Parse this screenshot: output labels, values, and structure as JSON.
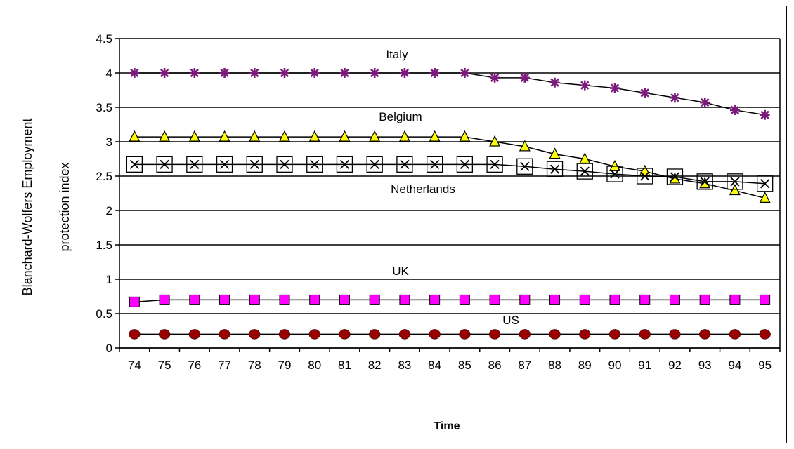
{
  "chart_data": {
    "type": "line",
    "title": "",
    "xlabel": "Time",
    "ylabel_lines": [
      "Blanchard-Wolfers Employment",
      "protection index"
    ],
    "x": [
      "74",
      "75",
      "76",
      "77",
      "78",
      "79",
      "80",
      "81",
      "82",
      "83",
      "84",
      "85",
      "86",
      "87",
      "88",
      "89",
      "90",
      "91",
      "92",
      "93",
      "94",
      "95"
    ],
    "ylim": [
      0,
      4.5
    ],
    "yticks": [
      "0",
      "0.5",
      "1",
      "1.5",
      "2",
      "2.5",
      "3",
      "3.5",
      "4",
      "4.5"
    ],
    "grid": "horizontal",
    "legend": "inline-labels",
    "series": [
      {
        "name": "Italy",
        "marker": "asterisk",
        "color": "#7a1a7a",
        "values": [
          4,
          4,
          4,
          4,
          4,
          4,
          4,
          4,
          4,
          4,
          4,
          4,
          3.93,
          3.93,
          3.86,
          3.82,
          3.78,
          3.71,
          3.64,
          3.57,
          3.46,
          3.39
        ]
      },
      {
        "name": "Belgium",
        "marker": "triangle",
        "color": "#ffff00",
        "values": [
          3.07,
          3.07,
          3.07,
          3.07,
          3.07,
          3.07,
          3.07,
          3.07,
          3.07,
          3.07,
          3.07,
          3.07,
          3.0,
          2.93,
          2.82,
          2.75,
          2.64,
          2.57,
          2.46,
          2.39,
          2.29,
          2.18
        ]
      },
      {
        "name": "Netherlands",
        "marker": "square-x",
        "color": "#000000",
        "values": [
          2.67,
          2.67,
          2.67,
          2.67,
          2.67,
          2.67,
          2.67,
          2.67,
          2.67,
          2.67,
          2.67,
          2.67,
          2.67,
          2.64,
          2.6,
          2.57,
          2.53,
          2.5,
          2.49,
          2.42,
          2.42,
          2.39
        ]
      },
      {
        "name": "UK",
        "marker": "square",
        "color": "#ff00ff",
        "values": [
          0.67,
          0.7,
          0.7,
          0.7,
          0.7,
          0.7,
          0.7,
          0.7,
          0.7,
          0.7,
          0.7,
          0.7,
          0.7,
          0.7,
          0.7,
          0.7,
          0.7,
          0.7,
          0.7,
          0.7,
          0.7,
          0.7
        ]
      },
      {
        "name": "US",
        "marker": "circle",
        "color": "#990000",
        "values": [
          0.2,
          0.2,
          0.2,
          0.2,
          0.2,
          0.2,
          0.2,
          0.2,
          0.2,
          0.2,
          0.2,
          0.2,
          0.2,
          0.2,
          0.2,
          0.2,
          0.2,
          0.2,
          0.2,
          0.2,
          0.2,
          0.2
        ]
      }
    ]
  }
}
